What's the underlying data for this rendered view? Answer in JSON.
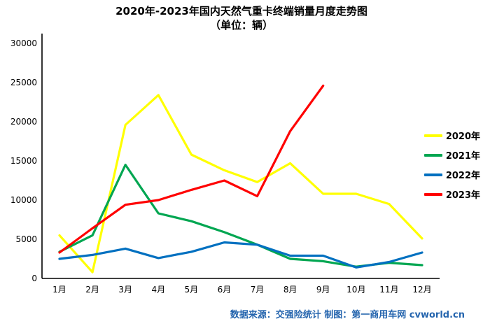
{
  "title": "2020年-2023年国内天然气重卡终端销量月度走势图",
  "subtitle": "（单位：辆）",
  "footer": {
    "source_text": "数据来源：交强险统计  制图：第一商用车网 cvworld.cn"
  },
  "chart_data": {
    "type": "line",
    "title": "2020年-2023年国内天然气重卡终端销量月度走势图",
    "subtitle": "（单位：辆）",
    "categories": [
      "1月",
      "2月",
      "3月",
      "4月",
      "5月",
      "6月",
      "7月",
      "8月",
      "9月",
      "10月",
      "11月",
      "12月"
    ],
    "series": [
      {
        "name": "2020年",
        "color": "#FFFF00",
        "values": [
          5500,
          800,
          19600,
          23400,
          15800,
          13800,
          12300,
          14700,
          10800,
          10800,
          9500,
          5100
        ]
      },
      {
        "name": "2021年",
        "color": "#00A651",
        "values": [
          3400,
          5500,
          14500,
          8300,
          7300,
          5900,
          4300,
          2500,
          2200,
          1500,
          2000,
          1700
        ]
      },
      {
        "name": "2022年",
        "color": "#0070C0",
        "values": [
          2500,
          3000,
          3800,
          2600,
          3400,
          4600,
          4300,
          2900,
          2900,
          1400,
          2100,
          3300
        ]
      },
      {
        "name": "2023年",
        "color": "#FF0000",
        "values": [
          3300,
          6400,
          9400,
          10000,
          11300,
          12500,
          10500,
          18800,
          24600,
          null,
          null,
          null
        ]
      }
    ],
    "xlabel": "",
    "ylabel": "",
    "ylim": [
      0,
      30000
    ],
    "yticks": [
      0,
      5000,
      10000,
      15000,
      20000,
      25000,
      30000
    ],
    "grid": false,
    "legend_position": "right"
  }
}
